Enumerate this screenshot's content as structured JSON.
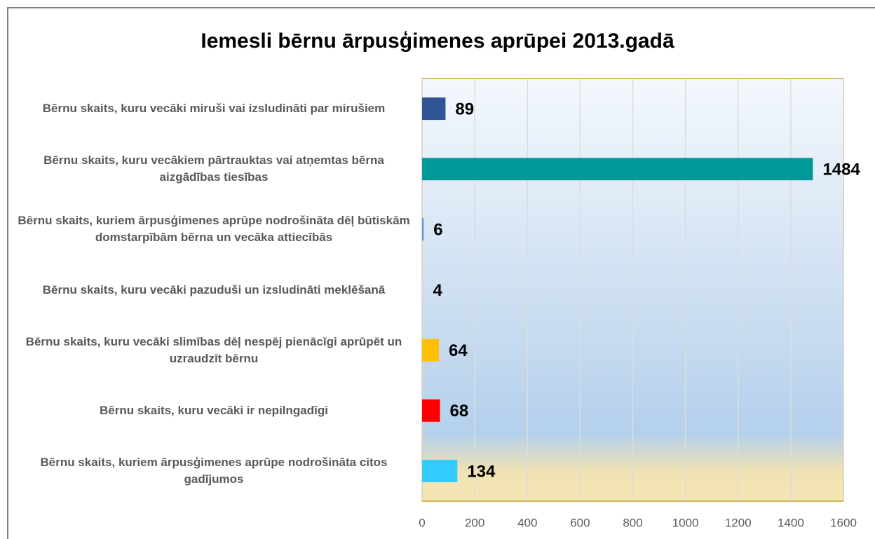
{
  "chart_data": {
    "type": "bar",
    "orientation": "horizontal",
    "title": "Iemesli bērnu ārpusģimenes aprūpei 2013.gadā",
    "categories": [
      "Bērnu skaits, kuru vecāki miruši vai izsludināti par mirušiem",
      "Bērnu skaits, kuru vecākiem pārtrauktas vai atņemtas bērna aizgādības tiesības",
      "Bērnu skaits, kuriem ārpusģimenes aprūpe nodrošināta dēļ būtiskām domstarpībām bērna un vecāka attiecībās",
      "Bērnu skaits, kuru vecāki pazuduši un izsludināti meklēšanā",
      "Bērnu skaits, kuru vecāki slimības dēļ nespēj pienācīgi aprūpēt un uzraudzīt bērnu",
      "Bērnu skaits, kuru vecāki ir nepilngadīgi",
      "Bērnu skaits, kuriem ārpusģimenes aprūpe nodrošināta citos gadījumos"
    ],
    "values": [
      89,
      1484,
      6,
      4,
      64,
      68,
      134
    ],
    "colors": [
      "#2f5597",
      "#009999",
      "#5b9bd5",
      "#d9d9d9",
      "#ffc000",
      "#ff0000",
      "#33ccff"
    ],
    "xlim": [
      0,
      1600
    ],
    "xticks": [
      0,
      200,
      400,
      600,
      800,
      1000,
      1200,
      1400,
      1600
    ],
    "grid": true
  }
}
